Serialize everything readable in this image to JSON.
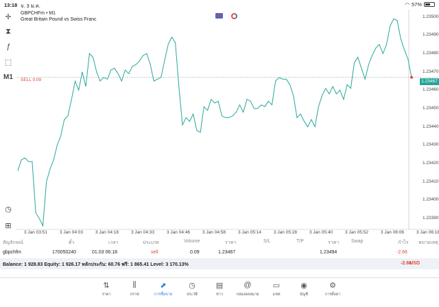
{
  "status_bar": {
    "time": "13:18",
    "date": "จ. 3 ม.ค.",
    "battery": "57%",
    "battery_level": 0.57
  },
  "toolbar": {
    "timeframe_label": "M1"
  },
  "chart_header": {
    "symbol_line": "GBPCHFm • M1",
    "description": "Great Britain Pound vs Swiss Franc"
  },
  "sell_line_label": "SELL 0.09",
  "current_price_tag": "1.23467",
  "colors": {
    "line": "#26a69a",
    "sell": "#e0463c",
    "accent": "#2a7de1"
  },
  "chart_data": {
    "type": "line",
    "x_labels": [
      "3 Jan 03:51",
      "3 Jan 04:03",
      "3 Jan 04:18",
      "3 Jan 04:33",
      "3 Jan 04:46",
      "3 Jan 04:58",
      "3 Jan 05:14",
      "3 Jan 05:28",
      "3 Jan 05:40",
      "3 Jan 05:52",
      "3 Jan 06:06",
      "3 Jan 06:18"
    ],
    "y_ticks": [
      "1.23500",
      "1.23490",
      "1.23480",
      "1.23470",
      "1.23460",
      "1.23450",
      "1.23440",
      "1.23430",
      "1.23420",
      "1.23410",
      "1.23400",
      "1.23390"
    ],
    "ylim": [
      1.23384,
      1.23504
    ],
    "sell_level": 1.23467,
    "values": [
      1.23416,
      1.23422,
      1.23423,
      1.23421,
      1.23421,
      1.23393,
      1.2339,
      1.23386,
      1.2341,
      1.23417,
      1.23422,
      1.2343,
      1.23435,
      1.23444,
      1.23446,
      1.23455,
      1.23465,
      1.2346,
      1.2347,
      1.23462,
      1.2348,
      1.23478,
      1.2347,
      1.23465,
      1.23467,
      1.23466,
      1.23471,
      1.23472,
      1.23469,
      1.23465,
      1.23471,
      1.23469,
      1.23473,
      1.23474,
      1.23476,
      1.23479,
      1.2348,
      1.23474,
      1.23465,
      1.23466,
      1.23467,
      1.23476,
      1.23485,
      1.23489,
      1.23486,
      1.23462,
      1.23441,
      1.23445,
      1.23443,
      1.23447,
      1.23438,
      1.23437,
      1.23451,
      1.23449,
      1.23455,
      1.23453,
      1.23454,
      1.23446,
      1.23445,
      1.23445,
      1.23446,
      1.23448,
      1.23452,
      1.23448,
      1.23455,
      1.23454,
      1.2345,
      1.2345,
      1.23452,
      1.23451,
      1.23454,
      1.23452,
      1.23465,
      1.23467,
      1.23466,
      1.23466,
      1.23463,
      1.23457,
      1.23445,
      1.23447,
      1.23443,
      1.2344,
      1.23444,
      1.2344,
      1.23451,
      1.23457,
      1.23461,
      1.23458,
      1.23462,
      1.23458,
      1.2346,
      1.23455,
      1.23463,
      1.23461,
      1.23475,
      1.23478,
      1.23472,
      1.23466,
      1.23474,
      1.23479,
      1.23483,
      1.23485,
      1.2348,
      1.23485,
      1.23495,
      1.23499,
      1.23498,
      1.23488,
      1.23482,
      1.23477,
      1.23467
    ]
  },
  "trades_table": {
    "headers": [
      "สัญลักษณ์",
      "ตั๋ว",
      "เวลา",
      "ประเภท",
      "Volume",
      "ราคา",
      "S/L",
      "T/P",
      "ราคา",
      "Swap",
      "กำไร",
      "หมายเหตุ"
    ],
    "row": {
      "symbol": "gbpchfm",
      "ticket": "170050240",
      "time": "01.03 06:18",
      "type": "sell",
      "volume": "0.09",
      "open_price": "1.23467",
      "current_price": "1.23494",
      "profit": "-2.66"
    }
  },
  "balance_bar": {
    "text": "Balance: 1 928.83 Equity: 1 926.17 หลักประกัน: 60.76 ฟรี: 1 865.41 Level: 3 170.13%",
    "total": "-2.66",
    "currency": "USD"
  },
  "tabs": [
    {
      "label": "ราคา",
      "icon": "quotes-icon"
    },
    {
      "label": "กราฟ",
      "icon": "chart-icon"
    },
    {
      "label": "การซื้อขาย",
      "icon": "trade-icon",
      "active": true
    },
    {
      "label": "ประวัติ",
      "icon": "history-icon"
    },
    {
      "label": "ข่าว",
      "icon": "news-icon"
    },
    {
      "label": "กล่องจดหมาย",
      "icon": "mailbox-icon"
    },
    {
      "label": "แชท",
      "icon": "chat-icon"
    },
    {
      "label": "บัญชี",
      "icon": "account-icon"
    },
    {
      "label": "การตั้งค่า",
      "icon": "settings-icon"
    }
  ]
}
